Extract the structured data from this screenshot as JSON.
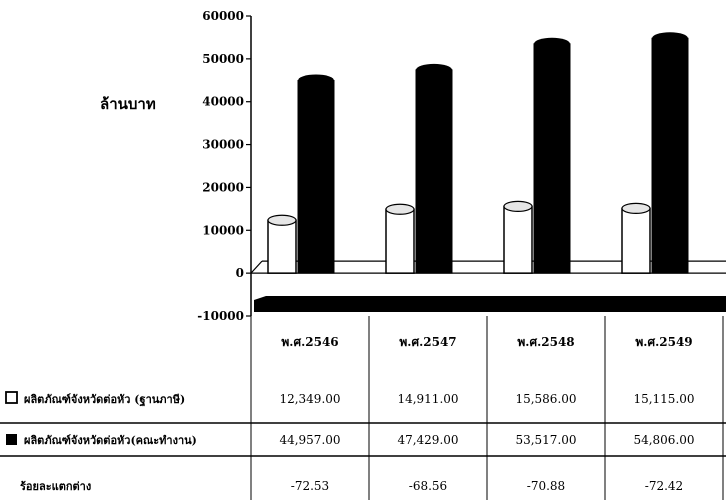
{
  "chart_data": {
    "type": "bar",
    "ylabel": "ล้านบาท",
    "ylim": [
      -10000,
      60000
    ],
    "yticks": [
      "60000",
      "50000",
      "40000",
      "30000",
      "20000",
      "10000",
      "0",
      "-10000"
    ],
    "categories": [
      "พ.ศ.2546",
      "พ.ศ.2547",
      "พ.ศ.2548",
      "พ.ศ.2549"
    ],
    "series": [
      {
        "name": "ผลิตภัณฑ์จังหวัดต่อหัว (ฐานภาษี)",
        "values": [
          12349,
          14911,
          15586,
          15115
        ],
        "labels": [
          "12,349.00",
          "14,911.00",
          "15,586.00",
          "15,115.00"
        ],
        "color": "#ffffff"
      },
      {
        "name": "ผลิตภัณฑ์จังหวัดต่อหัว(คณะทำงาน)",
        "values": [
          44957,
          47429,
          53517,
          54806
        ],
        "labels": [
          "44,957.00",
          "47,429.00",
          "53,517.00",
          "54,806.00"
        ],
        "color": "#000000"
      }
    ],
    "extra_row": {
      "name": "ร้อยละแตกต่าง",
      "labels": [
        "-72.53",
        "-68.56",
        "-70.88",
        "-72.42"
      ]
    },
    "grid": false,
    "legend_placement": "table-bottom"
  }
}
